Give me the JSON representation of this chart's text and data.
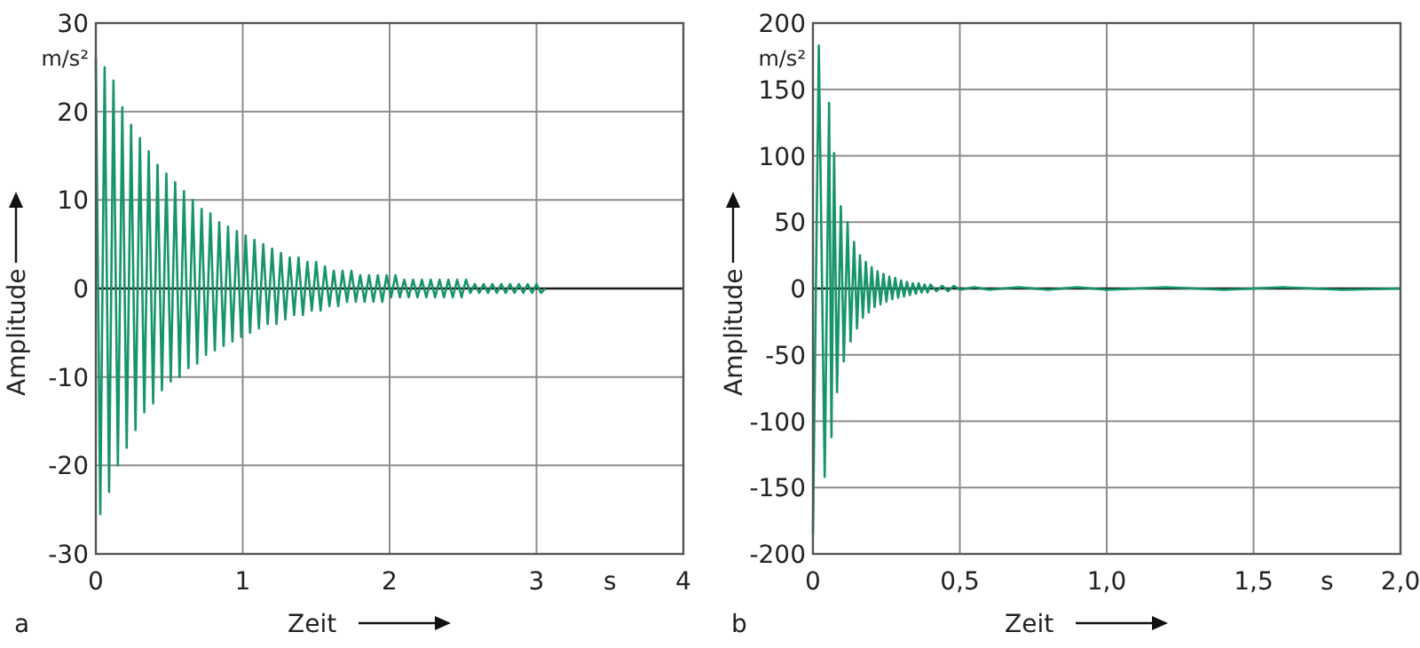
{
  "chart_data": [
    {
      "type": "line",
      "title": "a",
      "xlabel": "Zeit",
      "ylabel": "Amplitude",
      "annotations": [
        "m/s²",
        "s"
      ],
      "xlim": [
        0,
        4
      ],
      "xticks": [
        0,
        1,
        2,
        3,
        4
      ],
      "ylim": [
        -30,
        30
      ],
      "yticks": [
        -30,
        -20,
        -10,
        0,
        10,
        20,
        30
      ],
      "grid": true,
      "ref_lines": [
        {
          "axis": "y",
          "value": 0,
          "color": "#1a1a1a"
        }
      ],
      "series": [
        {
          "color": "#16946a",
          "x": [
            0,
            0.03,
            0.06,
            0.09,
            0.12,
            0.15,
            0.18,
            0.21,
            0.24,
            0.27,
            0.3,
            0.33,
            0.36,
            0.39,
            0.42,
            0.45,
            0.48,
            0.51,
            0.54,
            0.57,
            0.6,
            0.63,
            0.66,
            0.69,
            0.72,
            0.75,
            0.78,
            0.81,
            0.84,
            0.87,
            0.9,
            0.93,
            0.96,
            0.99,
            1.02,
            1.05,
            1.08,
            1.11,
            1.14,
            1.17,
            1.2,
            1.23,
            1.26,
            1.29,
            1.32,
            1.35,
            1.38,
            1.41,
            1.44,
            1.47,
            1.5,
            1.53,
            1.56,
            1.59,
            1.62,
            1.65,
            1.68,
            1.71,
            1.74,
            1.77,
            1.8,
            1.83,
            1.86,
            1.89,
            1.92,
            1.95,
            1.98,
            2.01,
            2.04,
            2.07,
            2.1,
            2.13,
            2.16,
            2.19,
            2.22,
            2.25,
            2.28,
            2.31,
            2.34,
            2.37,
            2.4,
            2.43,
            2.46,
            2.49,
            2.52,
            2.55,
            2.58,
            2.61,
            2.64,
            2.67,
            2.7,
            2.73,
            2.76,
            2.79,
            2.82,
            2.85,
            2.88,
            2.91,
            2.94,
            2.97,
            3.0,
            3.03,
            3.06
          ],
          "values": [
            26,
            -25.5,
            25,
            -23,
            23.5,
            -20,
            20.5,
            -18,
            18.5,
            -16,
            17,
            -14,
            15.5,
            -13,
            14,
            -11.5,
            13,
            -10.5,
            12,
            -10,
            11,
            -9,
            10,
            -8.5,
            9,
            -7.5,
            8.5,
            -7,
            7.5,
            -6.5,
            7,
            -6,
            6.5,
            -5.5,
            6,
            -5,
            5.5,
            -4.5,
            5,
            -4,
            4.5,
            -4,
            4,
            -3.5,
            3.5,
            -3,
            3.5,
            -3,
            3,
            -2.5,
            3,
            -2.5,
            2.5,
            -2,
            2,
            -2,
            2,
            -1.5,
            2,
            -1.5,
            1.5,
            -1.5,
            1.5,
            -1.5,
            1.5,
            -1.5,
            1.5,
            -1,
            1.5,
            -1,
            1,
            -1,
            1,
            -1,
            1,
            -1,
            1,
            -1,
            1,
            -1,
            1,
            -1,
            1,
            -1,
            1,
            -0.5,
            0.5,
            -0.5,
            0.5,
            -0.5,
            0.5,
            -0.5,
            0.5,
            -0.5,
            0.5,
            -0.5,
            0.5,
            -0.5,
            0.5,
            -0.5,
            0.5,
            -0.5,
            0
          ]
        }
      ]
    },
    {
      "type": "line",
      "title": "b",
      "xlabel": "Zeit",
      "ylabel": "Amplitude",
      "annotations": [
        "m/s²",
        "s"
      ],
      "xlim": [
        0,
        2
      ],
      "xticks": [
        0,
        {
          "value": 0.5,
          "label": "0,5"
        },
        {
          "value": 1,
          "label": "1,0"
        },
        {
          "value": 1.5,
          "label": "1,5"
        },
        {
          "value": 2,
          "label": "2,0"
        }
      ],
      "ylim": [
        -200,
        200
      ],
      "yticks": [
        -200,
        -150,
        -100,
        -50,
        0,
        50,
        100,
        150,
        200
      ],
      "grid": true,
      "ref_lines": [
        {
          "axis": "y",
          "value": 0,
          "color": "#1a1a1a"
        }
      ],
      "series": [
        {
          "color": "#16946a",
          "x": [
            0,
            0.02,
            0.04,
            0.055,
            0.063,
            0.072,
            0.082,
            0.095,
            0.105,
            0.118,
            0.128,
            0.14,
            0.15,
            0.16,
            0.17,
            0.18,
            0.19,
            0.2,
            0.21,
            0.22,
            0.23,
            0.24,
            0.25,
            0.26,
            0.27,
            0.28,
            0.29,
            0.3,
            0.31,
            0.32,
            0.33,
            0.34,
            0.35,
            0.36,
            0.37,
            0.38,
            0.39,
            0.4,
            0.42,
            0.44,
            0.46,
            0.48,
            0.5,
            0.55,
            0.6,
            0.7,
            0.8,
            0.9,
            1.0,
            1.2,
            1.4,
            1.6,
            1.8,
            2.0
          ],
          "values": [
            -185,
            183,
            -142,
            140,
            -112,
            102,
            -78,
            62,
            -55,
            50,
            -40,
            35,
            -30,
            25,
            -22,
            20,
            -18,
            16,
            -14,
            13,
            -12,
            11,
            -10,
            9,
            -8,
            8,
            -7,
            6,
            -6,
            5,
            -5,
            4,
            -4,
            4,
            -3,
            3,
            -3,
            3,
            -2,
            2,
            -2,
            2,
            -1,
            1,
            -1,
            1,
            -1,
            1,
            -1,
            1,
            -1,
            1,
            -1,
            0
          ]
        }
      ]
    }
  ]
}
